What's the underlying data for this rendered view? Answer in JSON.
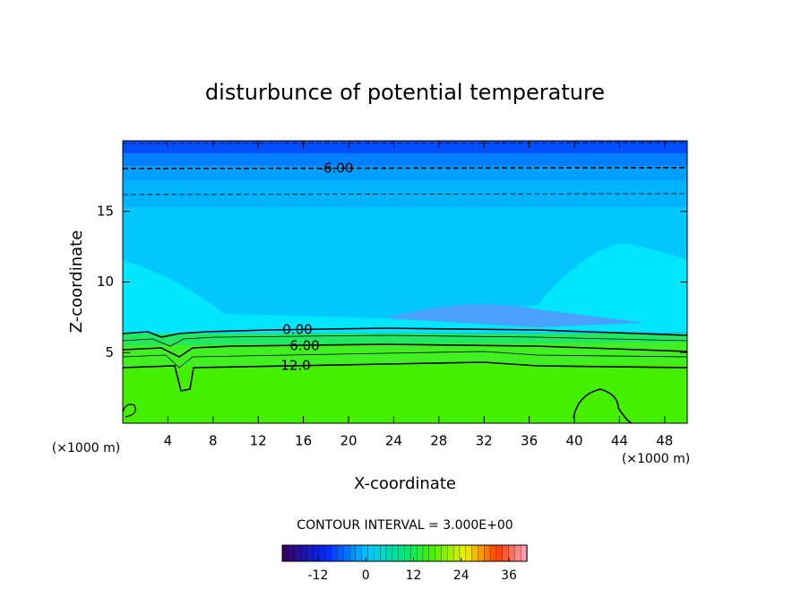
{
  "chart_data": {
    "type": "contour",
    "title": "disturbunce of potential temperature",
    "xlabel": "X-coordinate",
    "ylabel": "Z-coordinate",
    "x_unit": "(×1000 m)",
    "y_unit": "(×1000 m)",
    "xlim": [
      0,
      50
    ],
    "ylim": [
      0,
      20
    ],
    "xticks": [
      4,
      8,
      12,
      16,
      20,
      24,
      28,
      32,
      36,
      40,
      44,
      48
    ],
    "yticks": [
      5,
      10,
      15
    ],
    "contours": [
      {
        "level": -9
      },
      {
        "level": -6,
        "label": "-6.00"
      },
      {
        "level": -3
      },
      {
        "level": 0,
        "label": "0.00"
      },
      {
        "level": 3
      },
      {
        "level": 6,
        "label": "6.00"
      },
      {
        "level": 9
      },
      {
        "level": 12,
        "label": "12.0"
      }
    ],
    "annotation": "CONTOUR INTERVAL = 3.000E+00",
    "colorbar": {
      "lim": [
        -21,
        40.5
      ],
      "ticks": [
        -12,
        0,
        12,
        24,
        36
      ]
    }
  }
}
